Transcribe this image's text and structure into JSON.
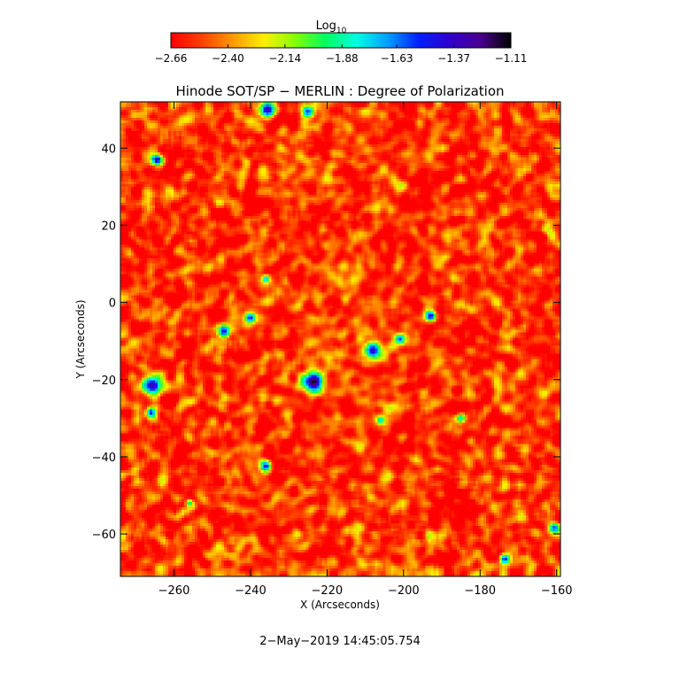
{
  "chart_data": {
    "type": "heatmap",
    "title": "Hinode SOT/SP − MERLIN : Degree of Polarization",
    "xlabel": "X (Arcseconds)",
    "ylabel": "Y (Arcseconds)",
    "xlim": [
      -274,
      -159
    ],
    "ylim": [
      -71,
      52
    ],
    "x_ticks": [
      -260,
      -240,
      -220,
      -200,
      -180,
      -160
    ],
    "x_tick_labels": [
      "−260",
      "−240",
      "−220",
      "−200",
      "−180",
      "−160"
    ],
    "y_ticks": [
      -60,
      -40,
      -20,
      0,
      20,
      40
    ],
    "y_tick_labels": [
      "−60",
      "−40",
      "−20",
      "0",
      "20",
      "40"
    ],
    "colorbar": {
      "label": "Log",
      "label_subscript": "10",
      "range": [
        -2.66,
        -1.11
      ],
      "tick_values": [
        -2.66,
        -2.4,
        -2.14,
        -1.88,
        -1.63,
        -1.37,
        -1.11
      ],
      "tick_labels": [
        "−2.66",
        "−2.40",
        "−2.14",
        "−1.88",
        "−1.63",
        "−1.37",
        "−1.11"
      ],
      "colormap": [
        "#ff0000",
        "#ff4000",
        "#ff9900",
        "#ffee00",
        "#88ff00",
        "#00ff60",
        "#00ffe0",
        "#00a0ff",
        "#0020ff",
        "#3000d0",
        "#4a0090",
        "#000000"
      ]
    },
    "background_level": -2.55,
    "features": [
      {
        "x": -223.5,
        "y": -20.5,
        "radius": 2.6,
        "peak": -1.12
      },
      {
        "x": -265.5,
        "y": -21.5,
        "radius": 2.4,
        "peak": -1.32
      },
      {
        "x": -266.0,
        "y": -28.5,
        "radius": 1.4,
        "peak": -1.5
      },
      {
        "x": -264.5,
        "y": 37.0,
        "radius": 1.5,
        "peak": -1.3
      },
      {
        "x": -235.5,
        "y": 50.0,
        "radius": 2.0,
        "peak": -1.35
      },
      {
        "x": -225.0,
        "y": 49.5,
        "radius": 1.8,
        "peak": -1.55
      },
      {
        "x": -247.0,
        "y": -7.5,
        "radius": 1.6,
        "peak": -1.45
      },
      {
        "x": -240.0,
        "y": -4.0,
        "radius": 1.6,
        "peak": -1.5
      },
      {
        "x": -208.0,
        "y": -12.5,
        "radius": 2.2,
        "peak": -1.4
      },
      {
        "x": -201.0,
        "y": -9.5,
        "radius": 1.5,
        "peak": -1.55
      },
      {
        "x": -193.0,
        "y": -3.5,
        "radius": 1.5,
        "peak": -1.4
      },
      {
        "x": -236.0,
        "y": -42.5,
        "radius": 1.5,
        "peak": -1.45
      },
      {
        "x": -173.5,
        "y": -66.5,
        "radius": 1.3,
        "peak": -1.5
      },
      {
        "x": -160.5,
        "y": -58.5,
        "radius": 1.4,
        "peak": -1.55
      },
      {
        "x": -206.0,
        "y": -30.5,
        "radius": 1.2,
        "peak": -1.8
      },
      {
        "x": -185.0,
        "y": -30.0,
        "radius": 1.2,
        "peak": -1.8
      },
      {
        "x": -256.0,
        "y": -52.0,
        "radius": 1.0,
        "peak": -1.9
      },
      {
        "x": -236.0,
        "y": 6.0,
        "radius": 1.0,
        "peak": -1.7
      }
    ],
    "grid": false
  },
  "footer": {
    "timestamp": "2−May−2019 14:45:05.754"
  }
}
